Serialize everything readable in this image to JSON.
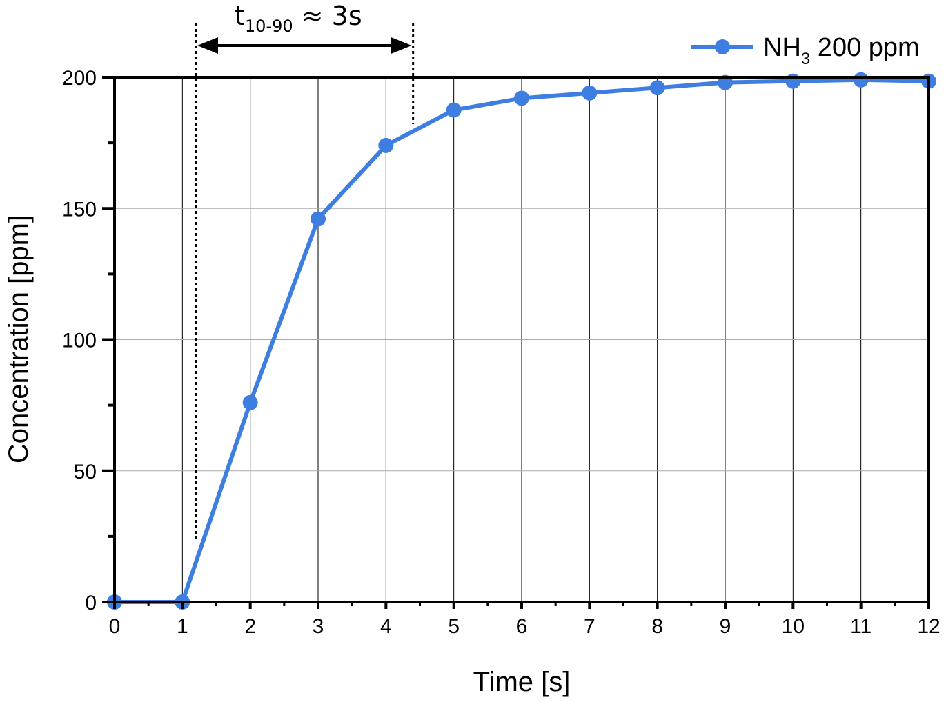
{
  "chart_data": {
    "type": "line",
    "xlabel": "Time [s]",
    "ylabel": "Concentration [ppm]",
    "xlim": [
      0,
      12
    ],
    "ylim": [
      0,
      200
    ],
    "x_ticks": [
      "0",
      "1",
      "2",
      "3",
      "4",
      "5",
      "6",
      "7",
      "8",
      "9",
      "10",
      "11",
      "12"
    ],
    "y_ticks": [
      "0",
      "50",
      "100",
      "150",
      "200"
    ],
    "grid": true,
    "legend_position": "top-right",
    "series": [
      {
        "name_main": "NH",
        "name_sub": "3",
        "name_rest": " 200 ppm",
        "color": "#3d7ee0",
        "x": [
          0,
          1,
          2,
          3,
          4,
          5,
          6,
          7,
          8,
          9,
          10,
          11,
          12
        ],
        "y": [
          0,
          0,
          76,
          146,
          174,
          187.5,
          192,
          194,
          196,
          198,
          198.5,
          199,
          198.5
        ]
      }
    ],
    "annotation": {
      "text_main": "t",
      "text_sub": "10-90",
      "text_rest": " ≈ 3s",
      "x_start": 1.2,
      "x_end": 4.4
    }
  }
}
